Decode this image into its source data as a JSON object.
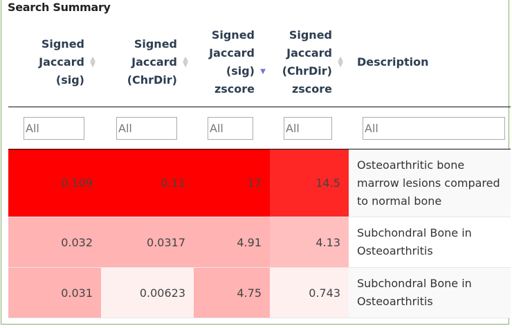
{
  "panel": {
    "title": "Search Summary"
  },
  "columns": [
    {
      "lines": [
        "Signed",
        "Jaccard",
        "(sig)"
      ],
      "sort": "none"
    },
    {
      "lines": [
        "Signed",
        "Jaccard",
        "(ChrDir)"
      ],
      "sort": "none"
    },
    {
      "lines": [
        "Signed",
        "Jaccard",
        "(sig)",
        "zscore"
      ],
      "sort": "descending"
    },
    {
      "lines": [
        "Signed",
        "Jaccard",
        "(ChrDir)",
        "zscore"
      ],
      "sort": "none"
    },
    {
      "lines": [
        "Description"
      ],
      "sort": "none"
    }
  ],
  "filters": [
    "All",
    "All",
    "All",
    "All",
    "All"
  ],
  "rows": [
    {
      "values": [
        "0.109",
        "0.11",
        "17",
        "14.5"
      ],
      "description": "Osteoarthritic bone marrow lesions compared to normal bone",
      "colors": [
        "#ff0000",
        "#ff0000",
        "#ff0000",
        "#ff2626"
      ],
      "desc_bg": "#f9f9f9"
    },
    {
      "values": [
        "0.032",
        "0.0317",
        "4.91",
        "4.13"
      ],
      "description": "Subchondral Bone in Osteoarthritis",
      "colors": [
        "#ffb3b3",
        "#ffb3b3",
        "#ffb3b3",
        "#ffbfbf"
      ],
      "desc_bg": "#ffffff"
    },
    {
      "values": [
        "0.031",
        "0.00623",
        "4.75",
        "0.743"
      ],
      "description": "Subchondral Bone in Osteoarthritis",
      "colors": [
        "#ffb3b3",
        "#fff0f0",
        "#ffb3b3",
        "#fff0f0"
      ],
      "desc_bg": "#f9f9f9"
    }
  ],
  "accent": {
    "frame": "#8aab6a",
    "sort_active": "#7474d4"
  }
}
